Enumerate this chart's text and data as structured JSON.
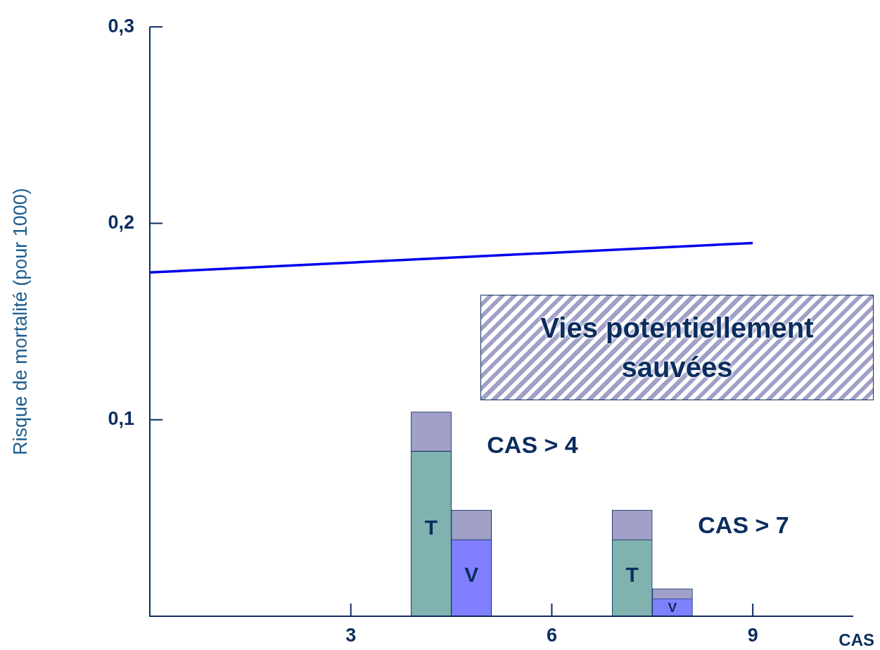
{
  "chart_data": {
    "type": "bar",
    "stacked": true,
    "ylabel": "Risque de mortalité (pour 1000)",
    "xlabel": "CAS",
    "x": [
      4.2,
      4.8,
      7.2,
      7.8
    ],
    "series": [
      {
        "colors": [
          "#80b2b0",
          "#8080ff",
          "#80b2b0",
          "#8080ff"
        ],
        "values": [
          0.084,
          0.039,
          0.039,
          0.009
        ],
        "value_labels": [
          "T",
          "V",
          "T",
          "V"
        ]
      },
      {
        "name": "Vies potentiellement sauvées",
        "color": "#a0a0c8",
        "values": [
          0.02,
          0.015,
          0.015,
          0.005
        ]
      },
      {
        "type": "line",
        "color": "#0000ee",
        "x": [
          0,
          9
        ],
        "values": [
          0.175,
          0.19
        ]
      }
    ],
    "xlim": [
      0,
      10.5
    ],
    "xticks": [
      3,
      6,
      9
    ],
    "ylim": [
      0,
      0.3
    ],
    "yticks": [
      {
        "value": 0.1,
        "label": "0,1"
      },
      {
        "value": 0.2,
        "label": "0,2"
      },
      {
        "value": 0.3,
        "label": "0,3"
      }
    ],
    "grid": false,
    "legend": "right",
    "marker": "none",
    "line_style": "solid",
    "annotations": [
      "CAS > 4",
      "CAS > 7"
    ]
  }
}
